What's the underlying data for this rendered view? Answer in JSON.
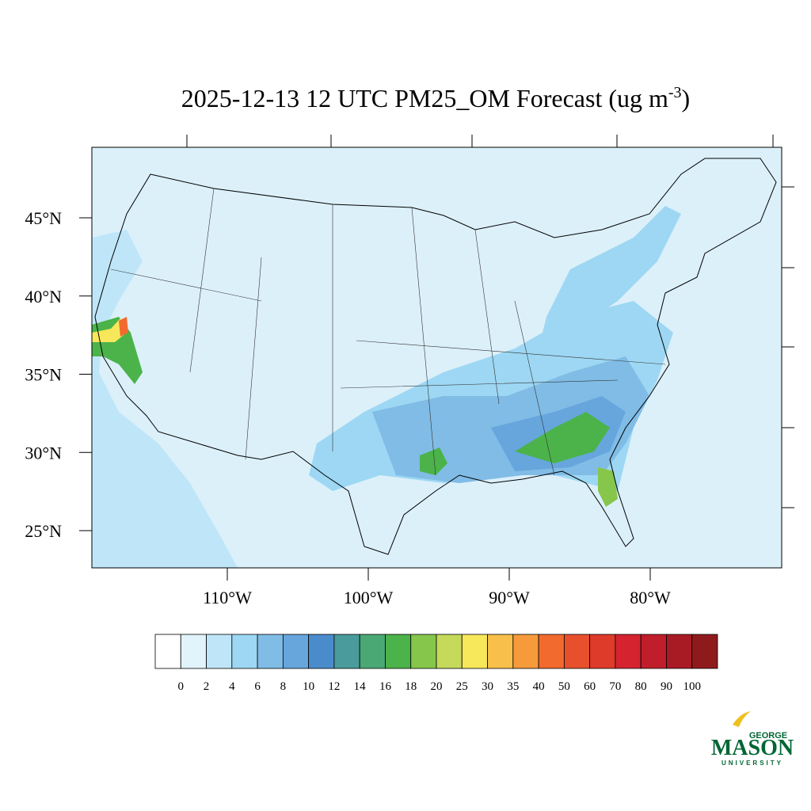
{
  "title": {
    "text": "2025-12-13 12 UTC PM25_OM Forecast (ug m",
    "superscript": "-3",
    "suffix": ")"
  },
  "lat_ticks": [
    {
      "value": 45,
      "label": "45°N"
    },
    {
      "value": 40,
      "label": "40°N"
    },
    {
      "value": 35,
      "label": "35°N"
    },
    {
      "value": 30,
      "label": "30°N"
    },
    {
      "value": 25,
      "label": "25°N"
    }
  ],
  "lon_ticks": [
    {
      "value": -110,
      "label": "110°W"
    },
    {
      "value": -100,
      "label": "100°W"
    },
    {
      "value": -90,
      "label": "90°W"
    },
    {
      "value": -80,
      "label": "80°W"
    }
  ],
  "colorbar": {
    "levels": [
      0,
      2,
      4,
      6,
      8,
      10,
      12,
      14,
      16,
      18,
      20,
      25,
      30,
      35,
      40,
      50,
      60,
      70,
      80,
      90,
      100
    ],
    "colors": [
      "#ffffff",
      "#e1f3fb",
      "#bfe6f8",
      "#9dd7f3",
      "#80bce6",
      "#66a6dc",
      "#4a8ccb",
      "#4a9b9b",
      "#4aa875",
      "#4bb34a",
      "#86c64b",
      "#c5d95a",
      "#f7e75a",
      "#f8c04a",
      "#f79a3c",
      "#f26a2e",
      "#e8502d",
      "#df3b2a",
      "#d52330",
      "#c01e2a",
      "#a91b24",
      "#8f1a1c"
    ]
  },
  "logo": {
    "top": "GEORGE",
    "name": "MASON",
    "bottom": "UNIVERSITY"
  }
}
